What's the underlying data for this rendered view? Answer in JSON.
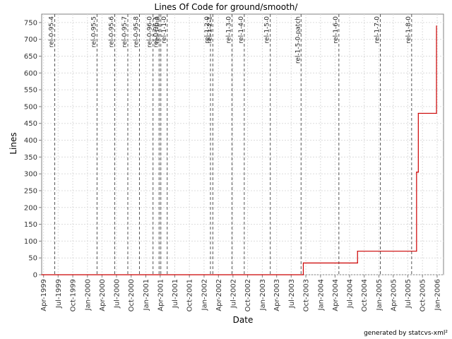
{
  "chart_data": {
    "type": "line",
    "title": "Lines Of Code for ground/smooth/",
    "xlabel": "Date",
    "ylabel": "Lines",
    "footer": "generated by statcvs-xml²",
    "xlim": [
      "1999-03-20",
      "2006-02-10"
    ],
    "ylim": [
      0,
      775
    ],
    "y_ticks": [
      0,
      50,
      100,
      150,
      200,
      250,
      300,
      350,
      400,
      450,
      500,
      550,
      600,
      650,
      700,
      750
    ],
    "x_ticks": [
      {
        "label": "Apr-1999",
        "date": "1999-04-01"
      },
      {
        "label": "Jul-1999",
        "date": "1999-07-01"
      },
      {
        "label": "Oct-1999",
        "date": "1999-10-01"
      },
      {
        "label": "Jan-2000",
        "date": "2000-01-01"
      },
      {
        "label": "Apr-2000",
        "date": "2000-04-01"
      },
      {
        "label": "Jul-2000",
        "date": "2000-07-01"
      },
      {
        "label": "Oct-2000",
        "date": "2000-10-01"
      },
      {
        "label": "Jan-2001",
        "date": "2001-01-01"
      },
      {
        "label": "Apr-2001",
        "date": "2001-04-01"
      },
      {
        "label": "Jul-2001",
        "date": "2001-07-01"
      },
      {
        "label": "Oct-2001",
        "date": "2001-10-01"
      },
      {
        "label": "Jan-2002",
        "date": "2002-01-01"
      },
      {
        "label": "Apr-2002",
        "date": "2002-04-01"
      },
      {
        "label": "Jul-2002",
        "date": "2002-07-01"
      },
      {
        "label": "Oct-2002",
        "date": "2002-10-01"
      },
      {
        "label": "Jan-2003",
        "date": "2003-01-01"
      },
      {
        "label": "Apr-2003",
        "date": "2003-04-01"
      },
      {
        "label": "Jul-2003",
        "date": "2003-07-01"
      },
      {
        "label": "Oct-2003",
        "date": "2003-10-01"
      },
      {
        "label": "Jan-2004",
        "date": "2004-01-01"
      },
      {
        "label": "Apr-2004",
        "date": "2004-04-01"
      },
      {
        "label": "Jul-2004",
        "date": "2004-07-01"
      },
      {
        "label": "Oct-2004",
        "date": "2004-10-01"
      },
      {
        "label": "Jan-2005",
        "date": "2005-01-01"
      },
      {
        "label": "Apr-2005",
        "date": "2005-04-01"
      },
      {
        "label": "Jul-2005",
        "date": "2005-07-01"
      },
      {
        "label": "Oct-2005",
        "date": "2005-10-01"
      },
      {
        "label": "Jan-2006",
        "date": "2006-01-01"
      }
    ],
    "grid": true,
    "line_color": "#cc0000",
    "marker_color": "#555555",
    "series": [
      {
        "points": [
          {
            "date": "1999-03-20",
            "value": 0
          },
          {
            "date": "2003-09-15",
            "value": 0
          },
          {
            "date": "2003-09-15",
            "value": 35
          },
          {
            "date": "2004-08-20",
            "value": 35
          },
          {
            "date": "2004-08-20",
            "value": 70
          },
          {
            "date": "2005-08-25",
            "value": 70
          },
          {
            "date": "2005-08-25",
            "value": 305
          },
          {
            "date": "2005-09-05",
            "value": 305
          },
          {
            "date": "2005-09-05",
            "value": 480
          },
          {
            "date": "2005-12-28",
            "value": 480
          },
          {
            "date": "2005-12-28",
            "value": 740
          }
        ]
      }
    ],
    "markers": [
      {
        "label": "rel-0-95-4",
        "date": "1999-06-10"
      },
      {
        "label": "rel-0-95-5",
        "date": "2000-03-01"
      },
      {
        "label": "rel-0-95-6",
        "date": "2000-06-20"
      },
      {
        "label": "rel-0-95-7",
        "date": "2000-09-10"
      },
      {
        "label": "rel-0-95-8",
        "date": "2000-11-22"
      },
      {
        "label": "rel-0-96-0",
        "date": "2001-02-15"
      },
      {
        "label": "rel-0-96-1",
        "date": "2001-03-25"
      },
      {
        "label": "rel-1-0-0",
        "date": "2001-04-05"
      },
      {
        "label": "rel-1-1-0",
        "date": "2001-05-15"
      },
      {
        "label": "rel-1-2-0",
        "date": "2002-02-10"
      },
      {
        "label": "rel-1-2-1",
        "date": "2002-02-25"
      },
      {
        "label": "rel-1-3-0",
        "date": "2002-06-25"
      },
      {
        "label": "rel-1-4-0",
        "date": "2002-09-10"
      },
      {
        "label": "rel-1-5-0",
        "date": "2003-02-20"
      },
      {
        "label": "rel-1-5-0-patch",
        "date": "2003-09-01"
      },
      {
        "label": "rel-1-6-0",
        "date": "2004-04-25"
      },
      {
        "label": "rel-1-7-0",
        "date": "2005-01-10"
      },
      {
        "label": "rel-1-8-0",
        "date": "2005-07-25"
      }
    ]
  }
}
